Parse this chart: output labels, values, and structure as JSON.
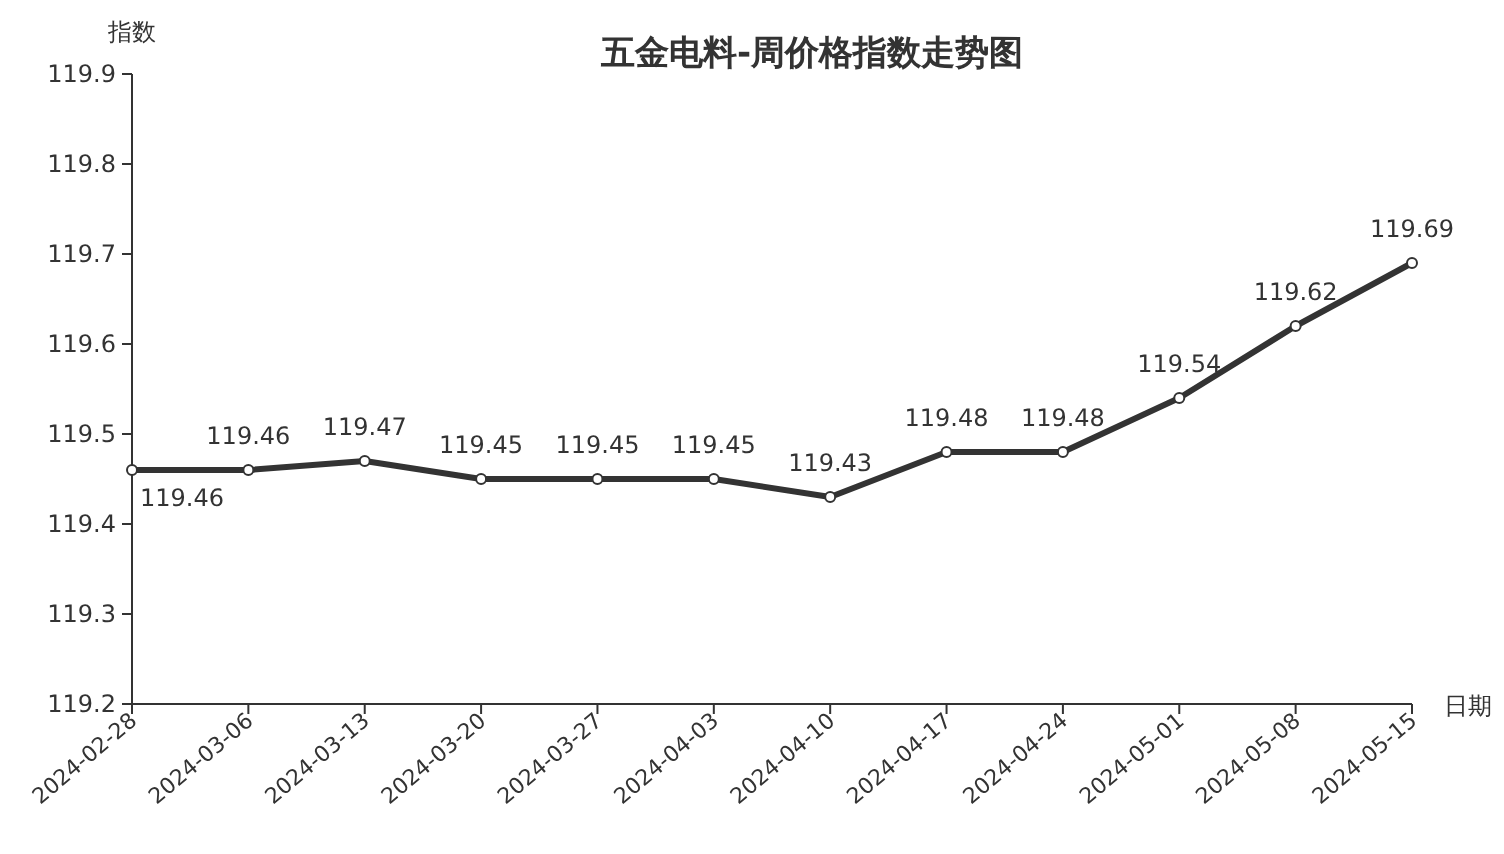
{
  "chart_data": {
    "type": "line",
    "title": "五金电料-周价格指数走势图",
    "xlabel": "日期",
    "ylabel": "指数",
    "categories": [
      "2024-02-28",
      "2024-03-06",
      "2024-03-13",
      "2024-03-20",
      "2024-03-27",
      "2024-04-03",
      "2024-04-10",
      "2024-04-17",
      "2024-04-24",
      "2024-05-01",
      "2024-05-08",
      "2024-05-15"
    ],
    "series": [
      {
        "color": "#333333",
        "values": [
          119.46,
          119.46,
          119.47,
          119.45,
          119.45,
          119.45,
          119.43,
          119.48,
          119.48,
          119.54,
          119.62,
          119.69
        ]
      }
    ],
    "ylim": [
      119.2,
      119.9
    ],
    "yticks": [
      119.2,
      119.3,
      119.4,
      119.5,
      119.6,
      119.7,
      119.8,
      119.9
    ],
    "data_labels": true,
    "marker": "circle",
    "line_style": "solid",
    "grid": false
  }
}
